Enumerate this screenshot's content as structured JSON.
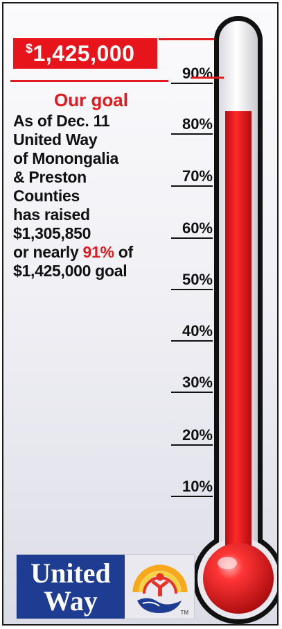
{
  "banner": {
    "currency_symbol": "$",
    "amount": "1,425,000"
  },
  "info": {
    "headline": "Our goal",
    "lines": [
      "As of Dec. 11",
      "United Way",
      "of Monongalia",
      "& Preston",
      "Counties",
      "has raised"
    ],
    "raised_amount": "$1,305,850",
    "nearly_prefix": "or nearly ",
    "percent": "91%",
    "nearly_suffix": " of",
    "goal_line": "$1,425,000 goal"
  },
  "thermometer": {
    "progress_percent": 91,
    "tick_labels": [
      "90%",
      "80%",
      "70%",
      "60%",
      "50%",
      "40%",
      "30%",
      "20%",
      "10%"
    ]
  },
  "logo": {
    "line1": "United",
    "line2": "Way",
    "tm": "TM"
  },
  "colors": {
    "red": "#e01a1f",
    "blue": "#1f3c93",
    "text": "#111111"
  }
}
